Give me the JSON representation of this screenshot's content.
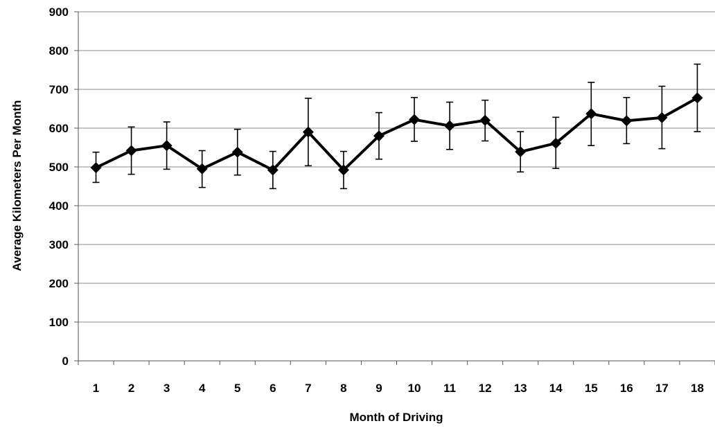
{
  "chart_data": {
    "type": "line",
    "title": "",
    "xlabel": "Month of Driving",
    "ylabel": "Average Kilometers Per Month",
    "categories": [
      "1",
      "2",
      "3",
      "4",
      "5",
      "6",
      "7",
      "8",
      "9",
      "10",
      "11",
      "12",
      "13",
      "14",
      "15",
      "16",
      "17",
      "18"
    ],
    "ylim": [
      0,
      900
    ],
    "yticks": [
      "0",
      "100",
      "200",
      "300",
      "400",
      "500",
      "600",
      "700",
      "800",
      "900"
    ],
    "grid": true,
    "legend": "none",
    "marker": "diamond",
    "line_color": "#000000",
    "grid_color": "#888888",
    "series": [
      {
        "values": [
          498,
          542,
          555,
          495,
          538,
          492,
          590,
          492,
          580,
          622,
          606,
          620,
          539,
          561,
          637,
          619,
          627,
          678
        ],
        "error_upper": [
          538,
          603,
          616,
          542,
          597,
          540,
          677,
          540,
          640,
          679,
          667,
          672,
          591,
          628,
          718,
          679,
          708,
          765
        ],
        "error_lower": [
          460,
          481,
          494,
          447,
          479,
          444,
          503,
          444,
          520,
          566,
          545,
          567,
          487,
          496,
          555,
          560,
          547,
          591
        ]
      }
    ]
  }
}
